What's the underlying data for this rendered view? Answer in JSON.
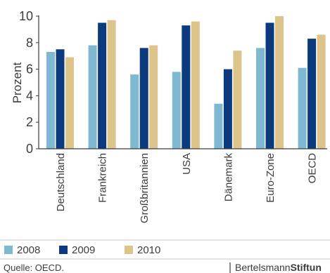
{
  "chart_data": {
    "type": "bar",
    "categories": [
      "Deutschland",
      "Frankreich",
      "Großbritannien",
      "USA",
      "Dänemark",
      "Euro-Zone",
      "OECD"
    ],
    "series": [
      {
        "name": "2008",
        "color": "#7fb8d1",
        "values": [
          7.3,
          7.8,
          5.6,
          5.8,
          3.4,
          7.6,
          6.1
        ]
      },
      {
        "name": "2009",
        "color": "#0b3b7e",
        "values": [
          7.5,
          9.5,
          7.6,
          9.3,
          6.0,
          9.5,
          8.3
        ]
      },
      {
        "name": "2010",
        "color": "#dcc48a",
        "values": [
          6.9,
          9.7,
          7.8,
          9.6,
          7.4,
          10.0,
          8.6
        ]
      }
    ],
    "title": "",
    "xlabel": "",
    "ylabel": "Prozent",
    "ylim": [
      0,
      10
    ],
    "yticks": [
      0,
      2,
      4,
      6,
      8,
      10
    ],
    "grid": false,
    "legend": "bottom"
  },
  "footer": {
    "source": "Quelle: OECD.",
    "logo_regular": "Bertelsmann",
    "logo_bold": "Stiftun"
  }
}
